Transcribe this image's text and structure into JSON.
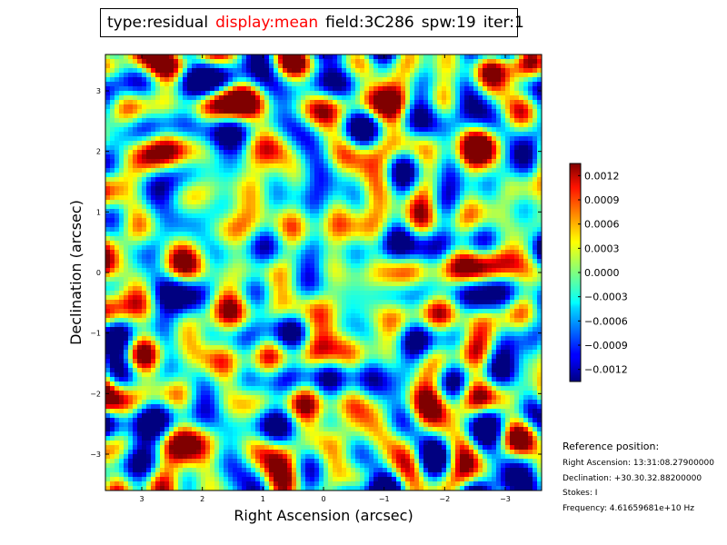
{
  "title": {
    "segments": [
      {
        "text": "type:residual",
        "color": "#000000"
      },
      {
        "text": "display:mean",
        "color": "#ff0000"
      },
      {
        "text": "field:3C286",
        "color": "#000000"
      },
      {
        "text": "spw:19",
        "color": "#000000"
      },
      {
        "text": "iter:1",
        "color": "#000000"
      }
    ]
  },
  "chart_data": {
    "type": "heatmap",
    "colormap": "jet",
    "xlabel": "Right Ascension (arcsec)",
    "ylabel": "Declination (arcsec)",
    "xlim": [
      3.6,
      -3.6
    ],
    "ylim": [
      -3.6,
      3.6
    ],
    "x_ticks": [
      3,
      2,
      1,
      0,
      -1,
      -2,
      -3
    ],
    "x_tick_labels": [
      "3",
      "2",
      "1",
      "0",
      "−1",
      "−2",
      "−3"
    ],
    "y_ticks": [
      3,
      2,
      1,
      0,
      -1,
      -2,
      -3
    ],
    "y_tick_labels": [
      "3",
      "2",
      "1",
      "0",
      "−1",
      "−2",
      "−3"
    ],
    "colorbar": {
      "vmin": -0.00135,
      "vmax": 0.00135,
      "ticks": [
        0.0012,
        0.0009,
        0.0006,
        0.0003,
        0.0,
        -0.0003,
        -0.0006,
        -0.0009,
        -0.0012
      ],
      "tick_labels": [
        "0.0012",
        "0.0009",
        "0.0006",
        "0.0003",
        "0.0000",
        "−0.0003",
        "−0.0006",
        "−0.0009",
        "−0.0012"
      ]
    },
    "grid": false
  },
  "reference": {
    "title": "Reference position:",
    "lines": [
      "Right Ascension: 13:31:08.27900000",
      "Declination: +30.30.32.88200000",
      "Stokes: I",
      "Frequency: 4.61659681e+10 Hz"
    ]
  }
}
